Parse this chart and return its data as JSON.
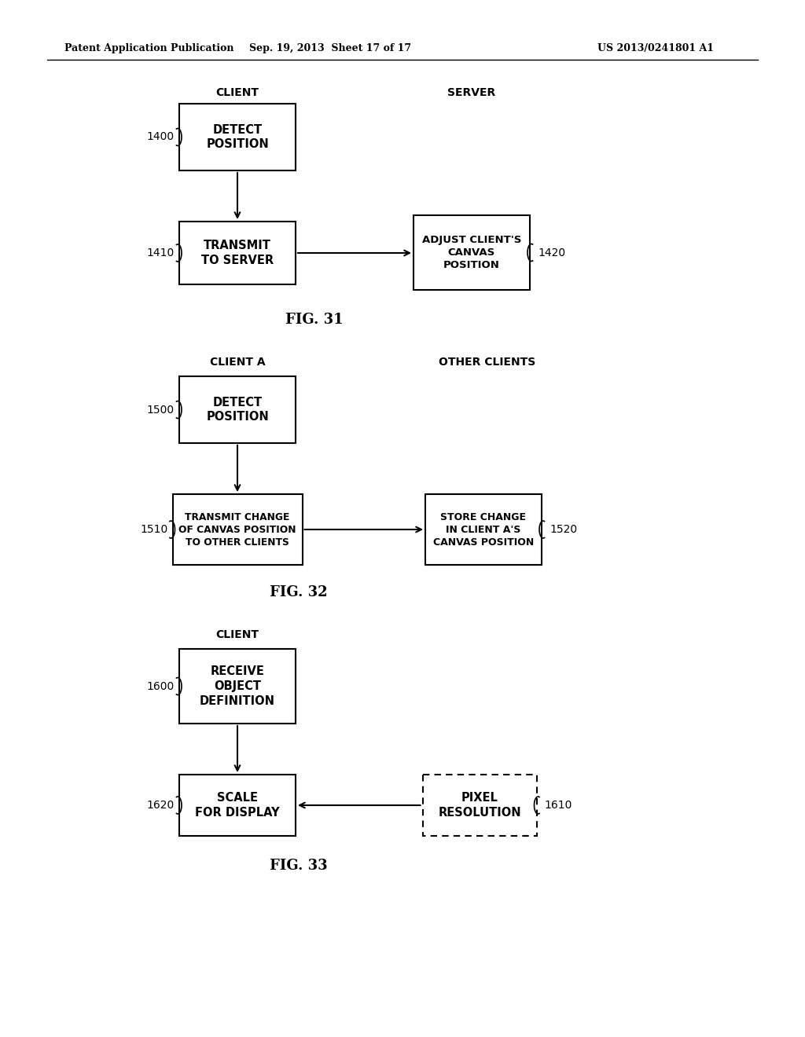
{
  "header_left": "Patent Application Publication",
  "header_mid": "Sep. 19, 2013  Sheet 17 of 17",
  "header_right": "US 2013/0241801 A1",
  "bg_color": "#ffffff",
  "fig31": {
    "title_left": "CLIENT",
    "title_right": "SERVER",
    "box1": {
      "label": "DETECT\nPOSITION",
      "ref": "1400"
    },
    "box2": {
      "label": "TRANSMIT\nTO SERVER",
      "ref": "1410"
    },
    "box3": {
      "label": "ADJUST CLIENT'S\nCANVAS\nPOSITION",
      "ref": "1420"
    },
    "caption": "FIG. 31"
  },
  "fig32": {
    "title_left": "CLIENT A",
    "title_right": "OTHER CLIENTS",
    "box1": {
      "label": "DETECT\nPOSITION",
      "ref": "1500"
    },
    "box2": {
      "label": "TRANSMIT CHANGE\nOF CANVAS POSITION\nTO OTHER CLIENTS",
      "ref": "1510"
    },
    "box3": {
      "label": "STORE CHANGE\nIN CLIENT A'S\nCANVAS POSITION",
      "ref": "1520"
    },
    "caption": "FIG. 32"
  },
  "fig33": {
    "title_left": "CLIENT",
    "box1": {
      "label": "RECEIVE\nOBJECT\nDEFINITION",
      "ref": "1600"
    },
    "box2": {
      "label": "SCALE\nFOR DISPLAY",
      "ref": "1620"
    },
    "box3": {
      "label": "PIXEL\nRESOLUTION",
      "ref": "1610",
      "dashed": true
    },
    "caption": "FIG. 33"
  }
}
